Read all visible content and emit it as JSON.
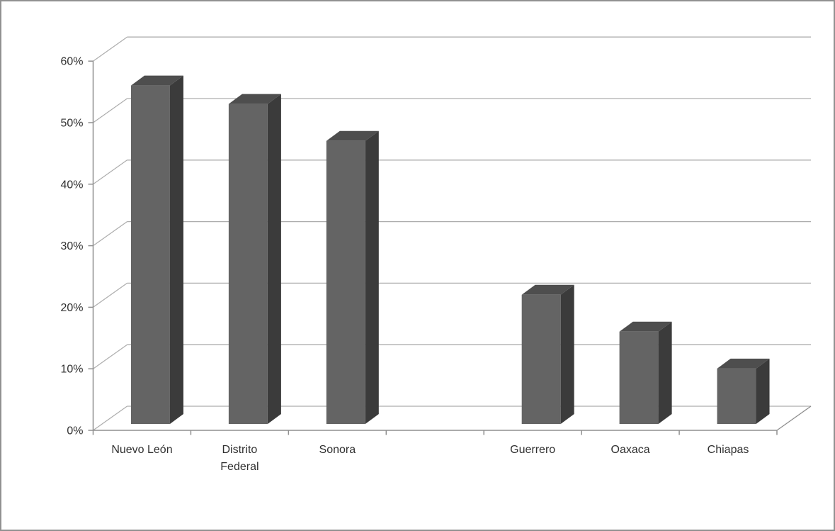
{
  "page": {
    "background": "#ffffff",
    "border_color": "#919191"
  },
  "chart_data": {
    "type": "bar",
    "style": "3d-column",
    "title": "",
    "xlabel": "",
    "ylabel": "",
    "legend": false,
    "grid": true,
    "unit": "%",
    "ylim": [
      0,
      60
    ],
    "ytick_step": 10,
    "ytick_labels": [
      "0%",
      "10%",
      "20%",
      "30%",
      "40%",
      "50%",
      "60%"
    ],
    "categories": [
      "Nuevo León",
      "Distrito Federal",
      "Sonora",
      "",
      "Guerrero",
      "Oaxaca",
      "Chiapas"
    ],
    "category_display_lines": [
      [
        "Nuevo León"
      ],
      [
        "Distrito",
        "Federal"
      ],
      [
        "Sonora"
      ],
      [],
      [
        "Guerrero"
      ],
      [
        "Oaxaca"
      ],
      [
        "Chiapas"
      ]
    ],
    "values": [
      55,
      52,
      46,
      null,
      21,
      15,
      9
    ],
    "colors": {
      "bar_front": "#646464",
      "bar_top": "#4e4e4e",
      "bar_side": "#3b3b3b",
      "gridline": "#adadad",
      "axis": "#8f8f8f",
      "text": "#303030"
    }
  }
}
